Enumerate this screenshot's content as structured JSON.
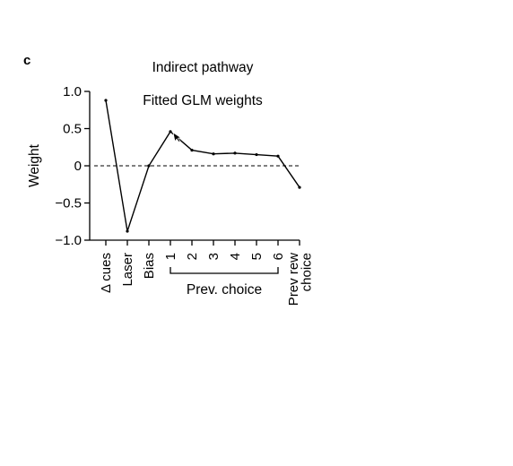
{
  "panel_letter": "c",
  "chart_data": {
    "type": "line",
    "title": "Indirect pathway",
    "subtitle": "Fitted GLM weights",
    "ylabel": "Weight",
    "xlabel": "",
    "ylim": [
      -1.0,
      1.0
    ],
    "yticks": [
      1.0,
      0.5,
      0,
      -0.5,
      -1.0
    ],
    "ytick_labels": [
      "1.0",
      "0.5",
      "0",
      "−0.5",
      "−1.0"
    ],
    "categories": [
      "Δ cues",
      "Laser",
      "Bias",
      "1",
      "2",
      "3",
      "4",
      "5",
      "6",
      "Prev rew choice"
    ],
    "category_lines": [
      [
        "Δ cues"
      ],
      [
        "Laser"
      ],
      [
        "Bias"
      ],
      [
        "1"
      ],
      [
        "2"
      ],
      [
        "3"
      ],
      [
        "4"
      ],
      [
        "5"
      ],
      [
        "6"
      ],
      [
        "Prev rew",
        "choice"
      ]
    ],
    "values": [
      0.88,
      -0.88,
      0.0,
      0.46,
      0.21,
      0.16,
      0.17,
      0.15,
      0.13,
      -0.29
    ],
    "reference_line": 0,
    "bracket_label": "Prev. choice",
    "bracket_span": [
      "1",
      "6"
    ],
    "grid": false,
    "colors": {
      "line": "#000000",
      "reference": "#000000"
    }
  }
}
